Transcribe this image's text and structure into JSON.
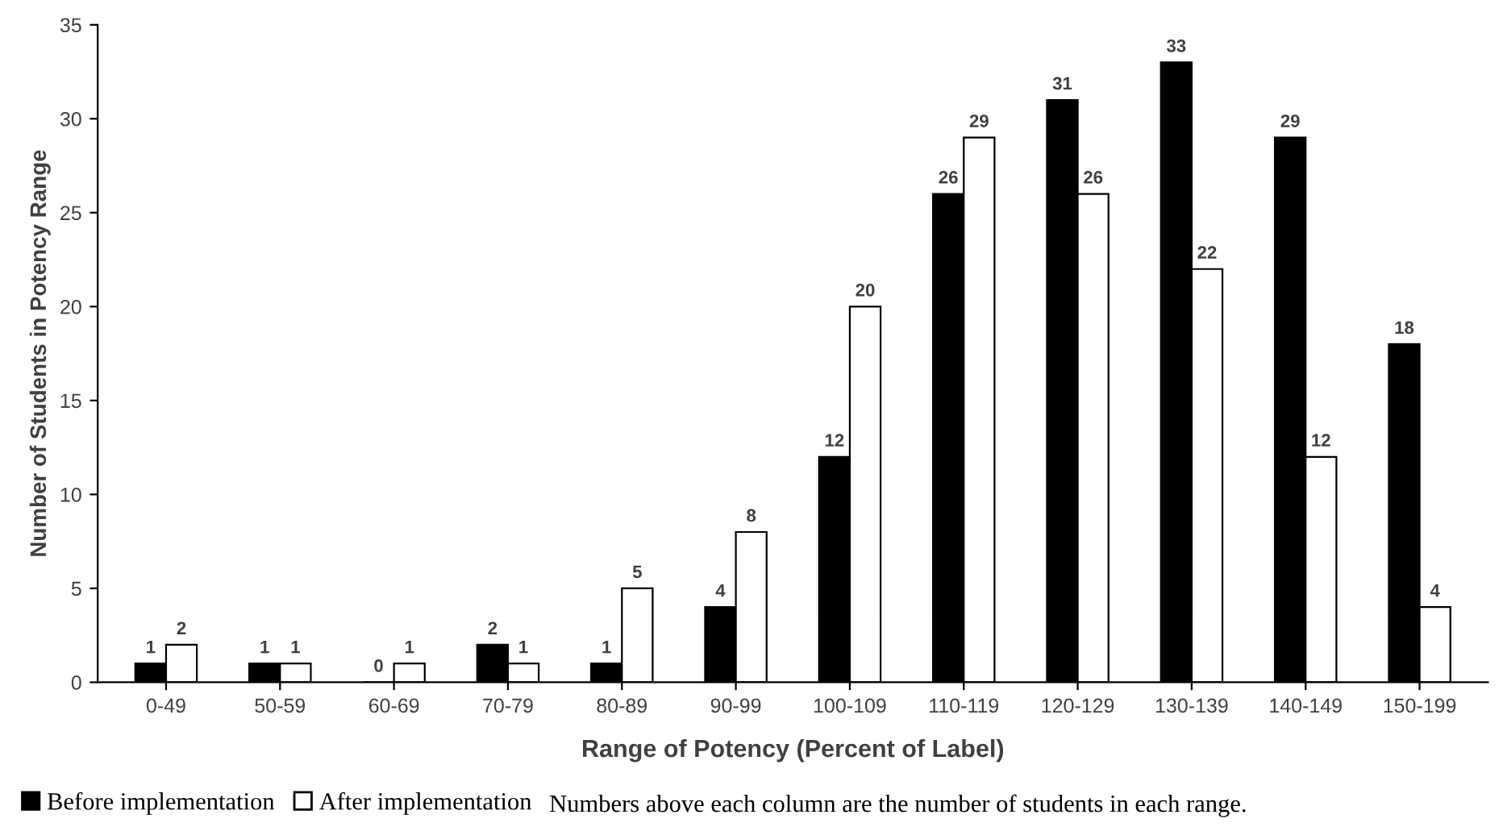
{
  "chart_data": {
    "type": "bar",
    "categories": [
      "0-49",
      "50-59",
      "60-69",
      "70-79",
      "80-89",
      "90-99",
      "100-109",
      "110-119",
      "120-129",
      "130-139",
      "140-149",
      "150-199"
    ],
    "series": [
      {
        "name": "Before implementation",
        "color": "#000000",
        "values": [
          1,
          1,
          0,
          2,
          1,
          4,
          12,
          26,
          31,
          33,
          29,
          18
        ]
      },
      {
        "name": "After implementation",
        "color": "#ffffff",
        "values": [
          2,
          1,
          1,
          1,
          5,
          8,
          20,
          29,
          26,
          22,
          12,
          4
        ]
      }
    ],
    "xlabel": "Range of Potency (Percent of Label)",
    "ylabel": "Number of Students in Potency Range",
    "ylim": [
      0,
      35
    ],
    "yticks": [
      0,
      5,
      10,
      15,
      20,
      25,
      30,
      35
    ],
    "data_labels": true,
    "grid": false,
    "legend": "bottom left",
    "annotations": [
      "Numbers above each column are the number of students in each range."
    ]
  }
}
